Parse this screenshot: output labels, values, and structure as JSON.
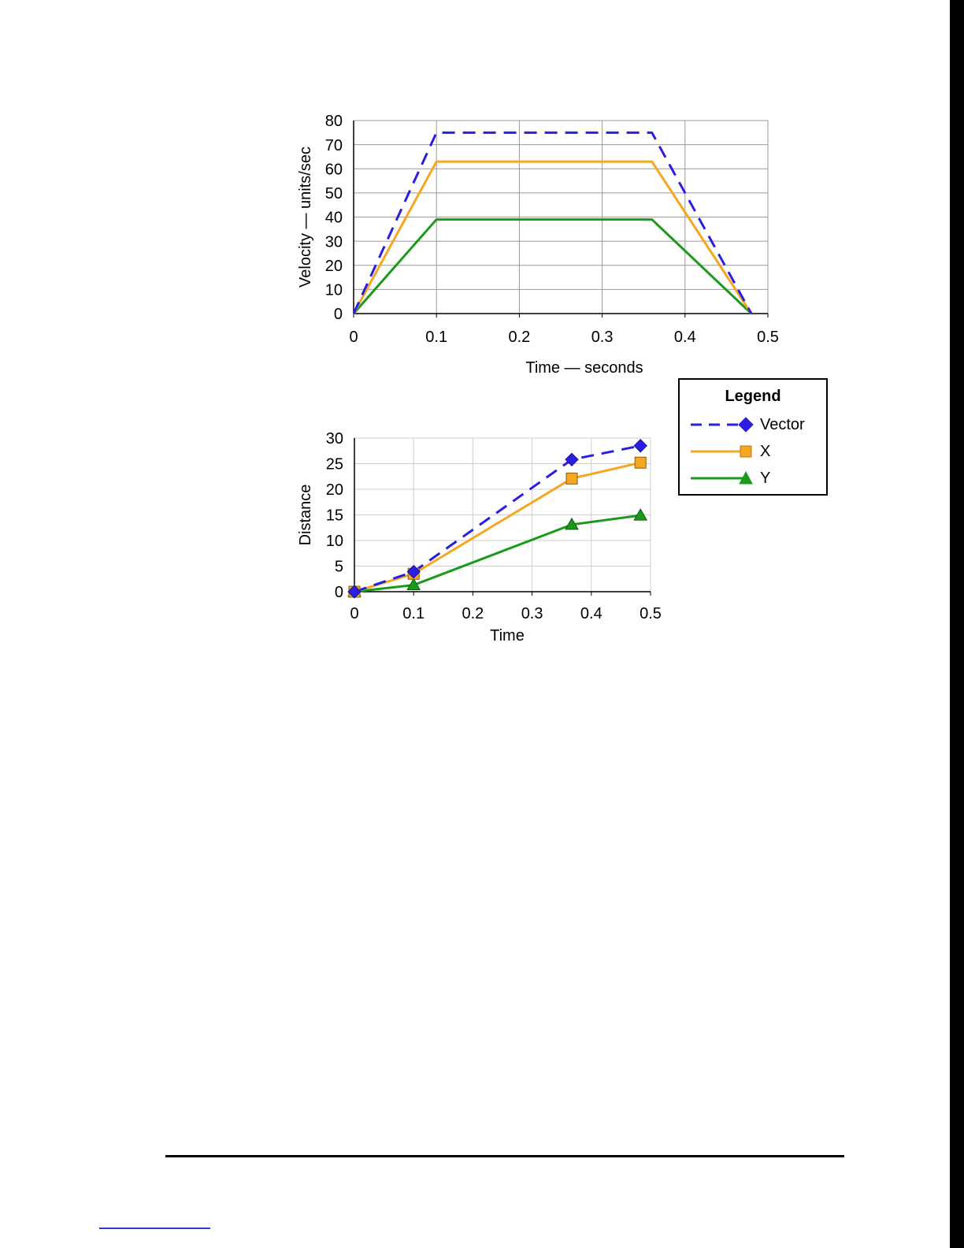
{
  "chart_data": [
    {
      "type": "line",
      "title": "",
      "xlabel": "Time — seconds",
      "ylabel": "Velocity — units/sec",
      "xlim": [
        0,
        0.5
      ],
      "ylim": [
        0,
        80
      ],
      "xticks": [
        "0",
        "0.1",
        "0.2",
        "0.3",
        "0.4",
        "0.5"
      ],
      "yticks": [
        "0",
        "10",
        "20",
        "30",
        "40",
        "50",
        "60",
        "70",
        "80"
      ],
      "grid": true,
      "series": [
        {
          "name": "Vector",
          "color": "#2a1fe0",
          "style": "dashed",
          "x": [
            0,
            0.1,
            0.36,
            0.48
          ],
          "y": [
            0,
            75,
            75,
            0
          ]
        },
        {
          "name": "X",
          "color": "#f5a623",
          "style": "solid",
          "x": [
            0,
            0.1,
            0.36,
            0.48
          ],
          "y": [
            0,
            63,
            63,
            0
          ]
        },
        {
          "name": "Y",
          "color": "#1a9a1a",
          "style": "solid",
          "x": [
            0,
            0.1,
            0.36,
            0.48
          ],
          "y": [
            0,
            39,
            39,
            0
          ]
        }
      ]
    },
    {
      "type": "line",
      "title": "",
      "xlabel": "Time",
      "ylabel": "Distance",
      "xlim": [
        0,
        0.5
      ],
      "ylim": [
        0,
        30
      ],
      "xticks": [
        "0",
        "0.1",
        "0.2",
        "0.3",
        "0.4",
        "0.5"
      ],
      "yticks": [
        "0",
        "5",
        "10",
        "15",
        "20",
        "25",
        "30"
      ],
      "grid": true,
      "series": [
        {
          "name": "Vector",
          "color": "#2a1fe0",
          "style": "dashed",
          "marker": "diamond",
          "x": [
            0,
            0.1,
            0.367,
            0.483
          ],
          "y": [
            0,
            3.9,
            25.8,
            28.5
          ]
        },
        {
          "name": "X",
          "color": "#f5a623",
          "style": "solid",
          "marker": "square",
          "x": [
            0,
            0.1,
            0.367,
            0.483
          ],
          "y": [
            0,
            3.5,
            22.1,
            25.2
          ]
        },
        {
          "name": "Y",
          "color": "#1a9a1a",
          "style": "solid",
          "marker": "triangle",
          "x": [
            0,
            0.1,
            0.367,
            0.483
          ],
          "y": [
            0,
            1.3,
            13.1,
            14.9
          ]
        }
      ]
    }
  ],
  "legend": {
    "title": "Legend",
    "placement": "right",
    "items": [
      {
        "label": "Vector",
        "color": "#2a1fe0",
        "style": "dashed",
        "marker": "diamond"
      },
      {
        "label": "X",
        "color": "#f5a623",
        "style": "solid",
        "marker": "square"
      },
      {
        "label": "Y",
        "color": "#1a9a1a",
        "style": "solid",
        "marker": "triangle"
      }
    ]
  }
}
